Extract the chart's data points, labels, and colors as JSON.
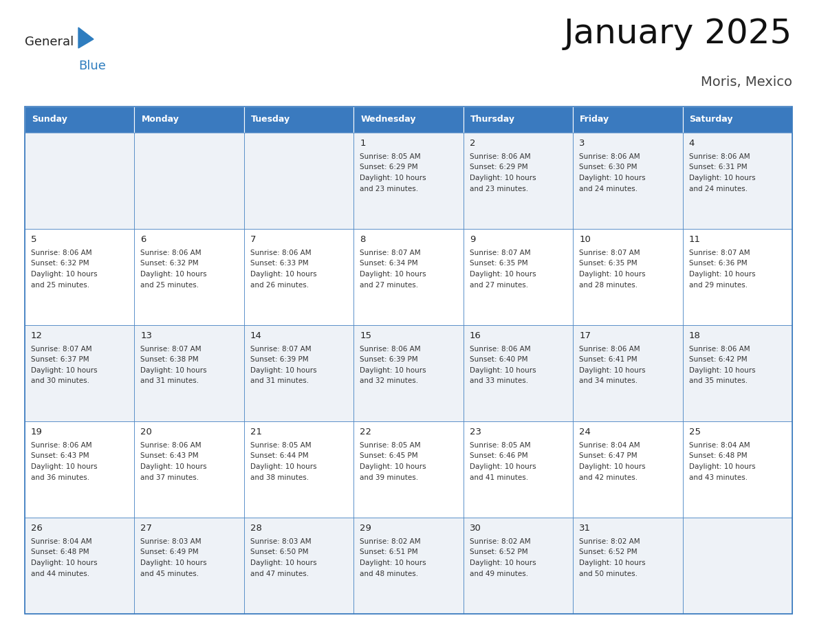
{
  "title": "January 2025",
  "subtitle": "Moris, Mexico",
  "header_color": "#3a7abf",
  "header_text_color": "#ffffff",
  "row_colors": [
    "#eef2f7",
    "#ffffff",
    "#eef2f7",
    "#ffffff",
    "#eef2f7"
  ],
  "border_color": "#3a7abf",
  "text_color": "#333333",
  "day_num_color": "#222222",
  "day_headers": [
    "Sunday",
    "Monday",
    "Tuesday",
    "Wednesday",
    "Thursday",
    "Friday",
    "Saturday"
  ],
  "logo_general_color": "#222222",
  "logo_blue_color": "#2e7dbf",
  "logo_triangle_color": "#2e7dbf",
  "days": [
    {
      "num": "",
      "sunrise": "",
      "sunset": "",
      "daylight_hours": 0,
      "daylight_mins": 0
    },
    {
      "num": "",
      "sunrise": "",
      "sunset": "",
      "daylight_hours": 0,
      "daylight_mins": 0
    },
    {
      "num": "",
      "sunrise": "",
      "sunset": "",
      "daylight_hours": 0,
      "daylight_mins": 0
    },
    {
      "num": "1",
      "sunrise": "8:05 AM",
      "sunset": "6:29 PM",
      "daylight_hours": 10,
      "daylight_mins": 23
    },
    {
      "num": "2",
      "sunrise": "8:06 AM",
      "sunset": "6:29 PM",
      "daylight_hours": 10,
      "daylight_mins": 23
    },
    {
      "num": "3",
      "sunrise": "8:06 AM",
      "sunset": "6:30 PM",
      "daylight_hours": 10,
      "daylight_mins": 24
    },
    {
      "num": "4",
      "sunrise": "8:06 AM",
      "sunset": "6:31 PM",
      "daylight_hours": 10,
      "daylight_mins": 24
    },
    {
      "num": "5",
      "sunrise": "8:06 AM",
      "sunset": "6:32 PM",
      "daylight_hours": 10,
      "daylight_mins": 25
    },
    {
      "num": "6",
      "sunrise": "8:06 AM",
      "sunset": "6:32 PM",
      "daylight_hours": 10,
      "daylight_mins": 25
    },
    {
      "num": "7",
      "sunrise": "8:06 AM",
      "sunset": "6:33 PM",
      "daylight_hours": 10,
      "daylight_mins": 26
    },
    {
      "num": "8",
      "sunrise": "8:07 AM",
      "sunset": "6:34 PM",
      "daylight_hours": 10,
      "daylight_mins": 27
    },
    {
      "num": "9",
      "sunrise": "8:07 AM",
      "sunset": "6:35 PM",
      "daylight_hours": 10,
      "daylight_mins": 27
    },
    {
      "num": "10",
      "sunrise": "8:07 AM",
      "sunset": "6:35 PM",
      "daylight_hours": 10,
      "daylight_mins": 28
    },
    {
      "num": "11",
      "sunrise": "8:07 AM",
      "sunset": "6:36 PM",
      "daylight_hours": 10,
      "daylight_mins": 29
    },
    {
      "num": "12",
      "sunrise": "8:07 AM",
      "sunset": "6:37 PM",
      "daylight_hours": 10,
      "daylight_mins": 30
    },
    {
      "num": "13",
      "sunrise": "8:07 AM",
      "sunset": "6:38 PM",
      "daylight_hours": 10,
      "daylight_mins": 31
    },
    {
      "num": "14",
      "sunrise": "8:07 AM",
      "sunset": "6:39 PM",
      "daylight_hours": 10,
      "daylight_mins": 31
    },
    {
      "num": "15",
      "sunrise": "8:06 AM",
      "sunset": "6:39 PM",
      "daylight_hours": 10,
      "daylight_mins": 32
    },
    {
      "num": "16",
      "sunrise": "8:06 AM",
      "sunset": "6:40 PM",
      "daylight_hours": 10,
      "daylight_mins": 33
    },
    {
      "num": "17",
      "sunrise": "8:06 AM",
      "sunset": "6:41 PM",
      "daylight_hours": 10,
      "daylight_mins": 34
    },
    {
      "num": "18",
      "sunrise": "8:06 AM",
      "sunset": "6:42 PM",
      "daylight_hours": 10,
      "daylight_mins": 35
    },
    {
      "num": "19",
      "sunrise": "8:06 AM",
      "sunset": "6:43 PM",
      "daylight_hours": 10,
      "daylight_mins": 36
    },
    {
      "num": "20",
      "sunrise": "8:06 AM",
      "sunset": "6:43 PM",
      "daylight_hours": 10,
      "daylight_mins": 37
    },
    {
      "num": "21",
      "sunrise": "8:05 AM",
      "sunset": "6:44 PM",
      "daylight_hours": 10,
      "daylight_mins": 38
    },
    {
      "num": "22",
      "sunrise": "8:05 AM",
      "sunset": "6:45 PM",
      "daylight_hours": 10,
      "daylight_mins": 39
    },
    {
      "num": "23",
      "sunrise": "8:05 AM",
      "sunset": "6:46 PM",
      "daylight_hours": 10,
      "daylight_mins": 41
    },
    {
      "num": "24",
      "sunrise": "8:04 AM",
      "sunset": "6:47 PM",
      "daylight_hours": 10,
      "daylight_mins": 42
    },
    {
      "num": "25",
      "sunrise": "8:04 AM",
      "sunset": "6:48 PM",
      "daylight_hours": 10,
      "daylight_mins": 43
    },
    {
      "num": "26",
      "sunrise": "8:04 AM",
      "sunset": "6:48 PM",
      "daylight_hours": 10,
      "daylight_mins": 44
    },
    {
      "num": "27",
      "sunrise": "8:03 AM",
      "sunset": "6:49 PM",
      "daylight_hours": 10,
      "daylight_mins": 45
    },
    {
      "num": "28",
      "sunrise": "8:03 AM",
      "sunset": "6:50 PM",
      "daylight_hours": 10,
      "daylight_mins": 47
    },
    {
      "num": "29",
      "sunrise": "8:02 AM",
      "sunset": "6:51 PM",
      "daylight_hours": 10,
      "daylight_mins": 48
    },
    {
      "num": "30",
      "sunrise": "8:02 AM",
      "sunset": "6:52 PM",
      "daylight_hours": 10,
      "daylight_mins": 49
    },
    {
      "num": "31",
      "sunrise": "8:02 AM",
      "sunset": "6:52 PM",
      "daylight_hours": 10,
      "daylight_mins": 50
    },
    {
      "num": "",
      "sunrise": "",
      "sunset": "",
      "daylight_hours": 0,
      "daylight_mins": 0
    }
  ]
}
